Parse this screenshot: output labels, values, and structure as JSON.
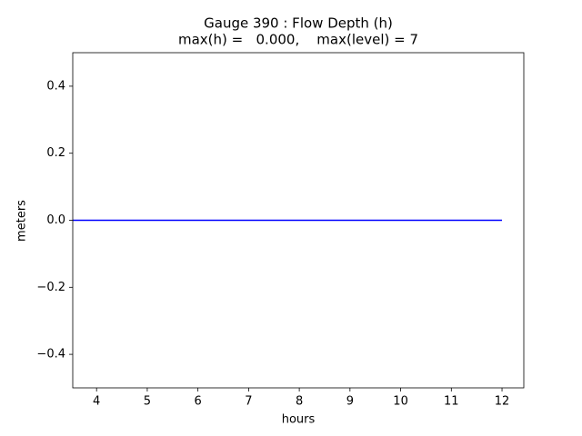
{
  "chart_data": {
    "type": "line",
    "title": [
      "Gauge 390 : Flow Depth (h)",
      "max(h) =   0.000,    max(level) = 7"
    ],
    "x_label": "hours",
    "y_label": "meters",
    "x": [
      3.53,
      12
    ],
    "series": [
      {
        "color": "#0000ff",
        "values": [
          0,
          0
        ]
      }
    ],
    "xlim": [
      3.53,
      12.43
    ],
    "xticks": [
      4,
      5,
      6,
      7,
      8,
      9,
      10,
      11,
      12
    ],
    "ylim": [
      -0.5,
      0.5
    ],
    "yticks": [
      {
        "value": -0.4,
        "label": "−0.4"
      },
      {
        "value": -0.2,
        "label": "−0.2"
      },
      {
        "value": 0,
        "label": "0.0"
      },
      0.2,
      0.4
    ],
    "grid": false
  }
}
